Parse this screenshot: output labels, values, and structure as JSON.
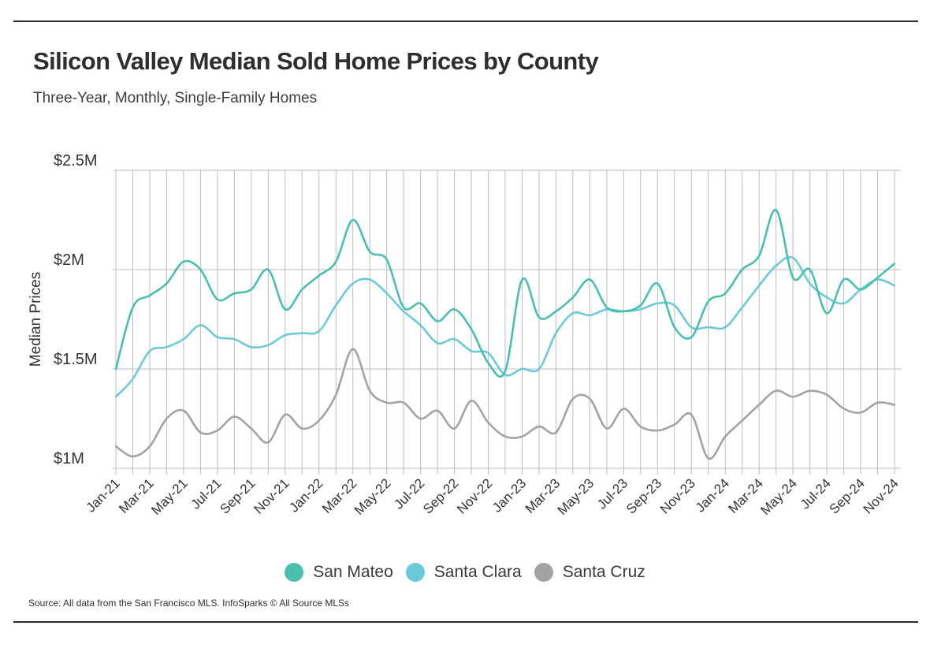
{
  "title": "Silicon Valley Median Sold Home Prices by County",
  "subtitle": "Three-Year, Monthly, Single-Family Homes",
  "source": "Source:  All data from the San Francisco MLS. InfoSparks © All Source MLSs",
  "colors": {
    "san_mateo": "#4bbfae",
    "santa_clara": "#6ccad8",
    "santa_cruz": "#a3a3a3",
    "grid": "#bdbdbd",
    "axis_text": "#333333"
  },
  "chart_data": {
    "type": "line",
    "title": "Silicon Valley Median Sold Home Prices by County",
    "subtitle": "Three-Year, Monthly, Single-Family Homes",
    "xlabel": "",
    "ylabel": "Median Prices",
    "ylim": [
      1000000,
      2500000
    ],
    "yticks": [
      {
        "value": 2500000,
        "label": "$2.5M"
      },
      {
        "value": 2000000,
        "label": "$2M"
      },
      {
        "value": 1500000,
        "label": "$1.5M"
      },
      {
        "value": 1000000,
        "label": "$1M"
      }
    ],
    "x": [
      "Jan-21",
      "Feb-21",
      "Mar-21",
      "Apr-21",
      "May-21",
      "Jun-21",
      "Jul-21",
      "Aug-21",
      "Sep-21",
      "Oct-21",
      "Nov-21",
      "Dec-21",
      "Jan-22",
      "Feb-22",
      "Mar-22",
      "Apr-22",
      "May-22",
      "Jun-22",
      "Jul-22",
      "Aug-22",
      "Sep-22",
      "Oct-22",
      "Nov-22",
      "Dec-22",
      "Jan-23",
      "Feb-23",
      "Mar-23",
      "Apr-23",
      "May-23",
      "Jun-23",
      "Jul-23",
      "Aug-23",
      "Sep-23",
      "Oct-23",
      "Nov-23",
      "Dec-23",
      "Jan-24",
      "Feb-24",
      "Mar-24",
      "Apr-24",
      "May-24",
      "Jun-24",
      "Jul-24",
      "Aug-24",
      "Sep-24",
      "Oct-24",
      "Nov-24"
    ],
    "xtick_labels": [
      "Jan-21",
      "Mar-21",
      "May-21",
      "Jul-21",
      "Sep-21",
      "Nov-21",
      "Jan-22",
      "Mar-22",
      "May-22",
      "Jul-22",
      "Sep-22",
      "Nov-22",
      "Jan-23",
      "Mar-23",
      "May-23",
      "Jul-23",
      "Sep-23",
      "Nov-23",
      "Jan-24",
      "Mar-24",
      "May-24",
      "Jul-24",
      "Sep-24",
      "Nov-24"
    ],
    "grid": true,
    "legend": "bottom",
    "series": [
      {
        "name": "San Mateo",
        "color": "#4bbfae",
        "values": [
          1500000,
          1810000,
          1870000,
          1930000,
          2040000,
          2000000,
          1850000,
          1880000,
          1900000,
          2000000,
          1800000,
          1900000,
          1970000,
          2040000,
          2250000,
          2090000,
          2050000,
          1810000,
          1830000,
          1740000,
          1800000,
          1700000,
          1530000,
          1490000,
          1950000,
          1760000,
          1790000,
          1860000,
          1950000,
          1810000,
          1790000,
          1820000,
          1930000,
          1710000,
          1660000,
          1840000,
          1880000,
          2000000,
          2070000,
          2300000,
          1960000,
          2000000,
          1780000,
          1950000,
          1900000,
          1960000,
          2030000
        ]
      },
      {
        "name": "Santa Clara",
        "color": "#6ccad8",
        "values": [
          1360000,
          1450000,
          1590000,
          1610000,
          1650000,
          1720000,
          1660000,
          1650000,
          1610000,
          1620000,
          1670000,
          1680000,
          1690000,
          1820000,
          1930000,
          1950000,
          1880000,
          1790000,
          1720000,
          1630000,
          1650000,
          1590000,
          1580000,
          1470000,
          1500000,
          1500000,
          1680000,
          1780000,
          1770000,
          1800000,
          1790000,
          1800000,
          1830000,
          1820000,
          1710000,
          1710000,
          1710000,
          1810000,
          1920000,
          2020000,
          2060000,
          1930000,
          1860000,
          1830000,
          1900000,
          1950000,
          1920000
        ]
      },
      {
        "name": "Santa Cruz",
        "color": "#a3a3a3",
        "values": [
          1110000,
          1060000,
          1110000,
          1250000,
          1290000,
          1180000,
          1190000,
          1260000,
          1200000,
          1130000,
          1270000,
          1200000,
          1240000,
          1370000,
          1600000,
          1390000,
          1330000,
          1330000,
          1250000,
          1290000,
          1200000,
          1340000,
          1230000,
          1160000,
          1160000,
          1210000,
          1180000,
          1350000,
          1350000,
          1200000,
          1300000,
          1210000,
          1190000,
          1220000,
          1270000,
          1050000,
          1160000,
          1240000,
          1320000,
          1390000,
          1360000,
          1390000,
          1370000,
          1300000,
          1280000,
          1330000,
          1320000
        ]
      }
    ]
  }
}
